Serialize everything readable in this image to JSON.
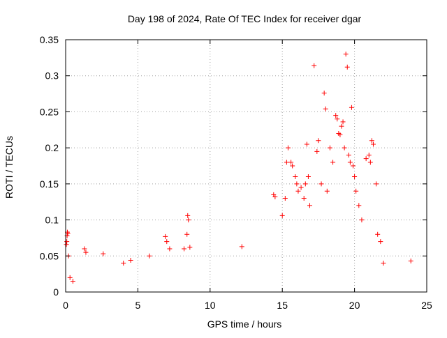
{
  "chart_data": {
    "type": "scatter",
    "title": "Day 198 of 2024, Rate Of TEC Index for receiver dgar",
    "xlabel": "GPS time / hours",
    "ylabel": "ROTI / TECUs",
    "xlim": [
      0,
      25
    ],
    "ylim": [
      0,
      0.35
    ],
    "x_ticks": [
      0,
      5,
      10,
      15,
      20,
      25
    ],
    "x_tick_labels": [
      "0",
      "5",
      "10",
      "15",
      "20",
      "25"
    ],
    "y_ticks": [
      0,
      0.05,
      0.1,
      0.15,
      0.2,
      0.25,
      0.3,
      0.35
    ],
    "y_tick_labels": [
      "0",
      "0.05",
      "0.1",
      "0.15",
      "0.2",
      "0.25",
      "0.3",
      "0.35"
    ],
    "grid": true,
    "marker": "+",
    "marker_color": "#ff0000",
    "series": [
      {
        "points": [
          [
            0.05,
            0.066
          ],
          [
            0.08,
            0.07
          ],
          [
            0.1,
            0.078
          ],
          [
            0.12,
            0.083
          ],
          [
            0.15,
            0.081
          ],
          [
            0.2,
            0.05
          ],
          [
            0.3,
            0.02
          ],
          [
            0.5,
            0.015
          ],
          [
            1.3,
            0.06
          ],
          [
            1.4,
            0.055
          ],
          [
            2.6,
            0.053
          ],
          [
            4.0,
            0.04
          ],
          [
            4.5,
            0.044
          ],
          [
            5.8,
            0.05
          ],
          [
            6.9,
            0.077
          ],
          [
            7.0,
            0.07
          ],
          [
            7.2,
            0.06
          ],
          [
            8.2,
            0.06
          ],
          [
            8.4,
            0.08
          ],
          [
            8.45,
            0.106
          ],
          [
            8.5,
            0.1
          ],
          [
            8.6,
            0.062
          ],
          [
            12.2,
            0.063
          ],
          [
            14.4,
            0.135
          ],
          [
            14.5,
            0.132
          ],
          [
            15.0,
            0.106
          ],
          [
            15.2,
            0.13
          ],
          [
            15.3,
            0.18
          ],
          [
            15.4,
            0.2
          ],
          [
            15.6,
            0.18
          ],
          [
            15.7,
            0.175
          ],
          [
            15.9,
            0.16
          ],
          [
            16.0,
            0.15
          ],
          [
            16.1,
            0.14
          ],
          [
            16.3,
            0.145
          ],
          [
            16.5,
            0.13
          ],
          [
            16.6,
            0.15
          ],
          [
            16.7,
            0.205
          ],
          [
            16.8,
            0.16
          ],
          [
            16.9,
            0.12
          ],
          [
            17.2,
            0.314
          ],
          [
            17.4,
            0.195
          ],
          [
            17.5,
            0.21
          ],
          [
            17.7,
            0.15
          ],
          [
            17.9,
            0.276
          ],
          [
            18.0,
            0.254
          ],
          [
            18.1,
            0.14
          ],
          [
            18.3,
            0.2
          ],
          [
            18.5,
            0.18
          ],
          [
            18.7,
            0.245
          ],
          [
            18.8,
            0.24
          ],
          [
            18.9,
            0.22
          ],
          [
            19.0,
            0.218
          ],
          [
            19.1,
            0.23
          ],
          [
            19.2,
            0.236
          ],
          [
            19.3,
            0.2
          ],
          [
            19.4,
            0.33
          ],
          [
            19.5,
            0.312
          ],
          [
            19.6,
            0.19
          ],
          [
            19.7,
            0.18
          ],
          [
            19.8,
            0.256
          ],
          [
            19.9,
            0.175
          ],
          [
            20.0,
            0.16
          ],
          [
            20.1,
            0.14
          ],
          [
            20.3,
            0.12
          ],
          [
            20.5,
            0.1
          ],
          [
            20.8,
            0.185
          ],
          [
            21.0,
            0.19
          ],
          [
            21.1,
            0.18
          ],
          [
            21.2,
            0.21
          ],
          [
            21.3,
            0.205
          ],
          [
            21.5,
            0.15
          ],
          [
            21.6,
            0.08
          ],
          [
            21.8,
            0.07
          ],
          [
            22.0,
            0.04
          ],
          [
            23.9,
            0.043
          ]
        ]
      }
    ]
  }
}
